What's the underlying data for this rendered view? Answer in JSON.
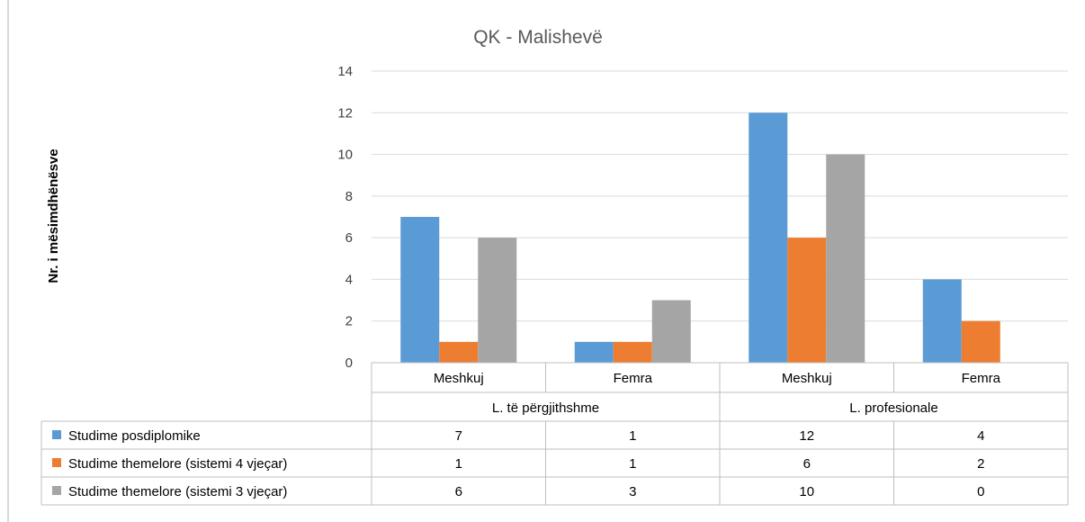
{
  "chart_data": {
    "type": "bar",
    "title": "QK - Malishevë",
    "ylabel": "Nr. i mësimdhënësve",
    "ylim": [
      0,
      14
    ],
    "yticks": [
      0,
      2,
      4,
      6,
      8,
      10,
      12,
      14
    ],
    "grid": true,
    "legend": "data-table",
    "groups": [
      {
        "label": "L. të përgjithshme",
        "categories": [
          "Meshkuj",
          "Femra"
        ]
      },
      {
        "label": "L. profesionale",
        "categories": [
          "Meshkuj",
          "Femra"
        ]
      }
    ],
    "categories": [
      "Meshkuj",
      "Femra",
      "Meshkuj",
      "Femra"
    ],
    "series": [
      {
        "name": "Studime posdiplomike",
        "color": "#5b9bd5",
        "values": [
          7,
          1,
          12,
          4
        ]
      },
      {
        "name": "Studime themelore (sistemi 4 vjeçar)",
        "color": "#ed7d31",
        "values": [
          1,
          1,
          6,
          2
        ]
      },
      {
        "name": "Studime themelore (sistemi 3 vjeçar)",
        "color": "#a5a5a5",
        "values": [
          6,
          3,
          10,
          0
        ]
      }
    ]
  }
}
